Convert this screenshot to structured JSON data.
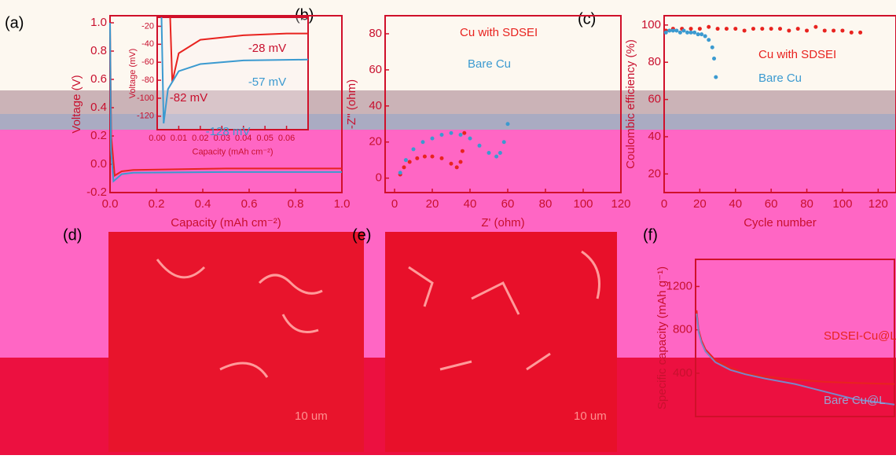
{
  "panels": {
    "labels": [
      "(a)",
      "(b)",
      "(c)",
      "(d)",
      "(e)",
      "(f)"
    ],
    "scale_bars": [
      "10 um",
      "10 um"
    ]
  },
  "chart_data": [
    {
      "type": "line",
      "x_label": "Capacity (mAh cm⁻²)",
      "y_label": "Voltage (V)",
      "xlim": [
        0,
        1
      ],
      "xticks": [
        {
          "value": 0,
          "label": "0.0"
        },
        {
          "value": 0.2,
          "label": "0.2"
        },
        {
          "value": 0.4,
          "label": "0.4"
        },
        {
          "value": 0.6,
          "label": "0.6"
        },
        {
          "value": 0.8,
          "label": "0.8"
        },
        {
          "value": 1,
          "label": "1.0"
        }
      ],
      "ylim": [
        -0.2,
        1.05
      ],
      "yticks": [
        {
          "value": -0.2,
          "label": "-0.2"
        },
        {
          "value": 0,
          "label": "0.0"
        },
        0.2,
        0.4,
        0.6,
        0.8,
        {
          "value": 1,
          "label": "1.0"
        }
      ],
      "series": [
        {
          "name": "Cu with SDSEI",
          "color": "#e8231f",
          "x": [
            0,
            0.005,
            0.02,
            0.05,
            0.1,
            0.5,
            1.0
          ],
          "values": [
            1.0,
            0.2,
            -0.08,
            -0.05,
            -0.04,
            -0.03,
            -0.03
          ]
        },
        {
          "name": "Bare Cu",
          "color": "#3b9ad0",
          "x": [
            0,
            0.004,
            0.015,
            0.05,
            0.1,
            0.5,
            1.0
          ],
          "values": [
            1.0,
            0.1,
            -0.12,
            -0.07,
            -0.06,
            -0.055,
            -0.055
          ]
        }
      ]
    },
    {
      "type": "line",
      "x_label": "Capacity (mAh cm⁻²)",
      "y_label": "Voltage (mV)",
      "xlim": [
        0,
        0.07
      ],
      "xticks": [
        {
          "value": 0,
          "label": "0.00"
        },
        {
          "value": 0.01,
          "label": "0.01"
        },
        {
          "value": 0.02,
          "label": "0.02"
        },
        {
          "value": 0.03,
          "label": "0.03"
        },
        {
          "value": 0.04,
          "label": "0.04"
        },
        {
          "value": 0.05,
          "label": "0.05"
        },
        {
          "value": 0.06,
          "label": "0.06"
        }
      ],
      "ylim": [
        -135,
        -10
      ],
      "yticks": [
        -20,
        -40,
        -60,
        -80,
        -100,
        -120
      ],
      "annotations": [
        "-28 mV",
        "-57 mV",
        "-82 mV",
        "-128 mV"
      ],
      "series": [
        {
          "color": "#e8231f",
          "x": [
            0.006,
            0.007,
            0.01,
            0.02,
            0.04,
            0.06,
            0.07
          ],
          "values": [
            -10,
            -82,
            -50,
            -35,
            -30,
            -28,
            -28
          ]
        },
        {
          "color": "#3b9ad0",
          "x": [
            0.002,
            0.003,
            0.005,
            0.01,
            0.02,
            0.04,
            0.07
          ],
          "values": [
            -10,
            -128,
            -90,
            -70,
            -62,
            -58,
            -57
          ]
        }
      ]
    },
    {
      "type": "scatter",
      "x_label": "Z' (ohm)",
      "y_label": "-Z'' (ohm)",
      "legend": true,
      "xlim": [
        -5,
        120
      ],
      "xticks": [
        0,
        20,
        40,
        60,
        80,
        100,
        120
      ],
      "ylim": [
        -8,
        90
      ],
      "yticks": [
        0,
        20,
        40,
        60,
        80
      ],
      "series": [
        {
          "name": "Cu with SDSEI",
          "color": "#e8231f",
          "x": [
            3,
            5,
            8,
            12,
            16,
            20,
            25,
            30,
            33,
            35,
            36,
            37
          ],
          "values": [
            2,
            6,
            9,
            11,
            12,
            12,
            11,
            8,
            6,
            9,
            15,
            25
          ]
        },
        {
          "name": "Bare Cu",
          "color": "#3b9ad0",
          "x": [
            3,
            6,
            10,
            15,
            20,
            25,
            30,
            35,
            40,
            45,
            50,
            54,
            56,
            58,
            60
          ],
          "values": [
            3,
            10,
            16,
            20,
            22,
            24,
            25,
            24,
            22,
            18,
            14,
            12,
            14,
            20,
            30
          ]
        }
      ]
    },
    {
      "type": "scatter",
      "x_label": "Cycle number",
      "y_label": "Coulombic efficiency (%)",
      "legend": true,
      "xlim": [
        0,
        130
      ],
      "xticks": [
        0,
        20,
        40,
        60,
        80,
        100,
        120
      ],
      "ylim": [
        10,
        105
      ],
      "yticks": [
        20,
        40,
        60,
        80,
        100
      ],
      "series": [
        {
          "name": "Cu with SDSEI",
          "color": "#e8231f",
          "x": [
            1,
            5,
            10,
            15,
            20,
            25,
            30,
            35,
            40,
            45,
            50,
            55,
            60,
            65,
            70,
            75,
            80,
            85,
            90,
            95,
            100,
            105,
            110
          ],
          "values": [
            97,
            98,
            98,
            98,
            98,
            99,
            98,
            98,
            98,
            97,
            98,
            98,
            98,
            98,
            97,
            98,
            97,
            99,
            97,
            97,
            97,
            96,
            96
          ]
        },
        {
          "name": "Bare Cu",
          "color": "#3b9ad0",
          "x": [
            1,
            3,
            5,
            7,
            9,
            11,
            13,
            15,
            17,
            19,
            21,
            23,
            25,
            27,
            28,
            29
          ],
          "values": [
            96,
            97,
            97,
            97,
            96,
            97,
            96,
            96,
            96,
            95,
            95,
            94,
            92,
            88,
            82,
            72
          ]
        }
      ]
    },
    {
      "type": "line",
      "y_label": "Specific capacity (mAh g⁻¹)",
      "xlim": [
        0,
        200
      ],
      "ylim": [
        0,
        1450
      ],
      "yticks": [
        400,
        800,
        1200
      ],
      "series": [
        {
          "name": "SDSEI-Cu@L",
          "color": "#e8231f",
          "x": [
            1,
            3,
            6,
            10,
            20,
            35,
            50,
            70,
            100,
            130,
            160,
            200
          ],
          "values": [
            980,
            800,
            700,
            620,
            520,
            450,
            400,
            370,
            340,
            320,
            310,
            300
          ]
        },
        {
          "name": "Bare Cu@L",
          "color": "#7a86c8",
          "x": [
            1,
            3,
            6,
            10,
            20,
            35,
            50,
            70,
            100,
            130,
            160,
            200
          ],
          "values": [
            950,
            780,
            680,
            600,
            500,
            430,
            390,
            350,
            300,
            230,
            160,
            110
          ]
        }
      ]
    }
  ]
}
